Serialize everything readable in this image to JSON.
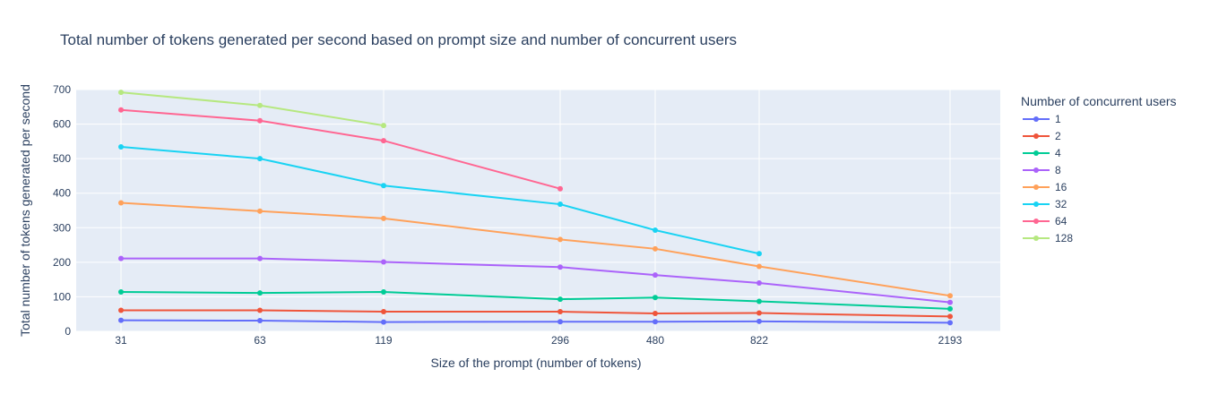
{
  "chart_data": {
    "type": "line",
    "title": "Total number of tokens generated per second based on prompt size and number of concurrent users",
    "xlabel": "Size of the prompt (number of tokens)",
    "ylabel": "Total number of tokens generated per second",
    "categories": [
      "31",
      "63",
      "119",
      "296",
      "480",
      "822",
      "2193"
    ],
    "ylim": [
      0,
      700
    ],
    "yticks": [
      0,
      100,
      200,
      300,
      400,
      500,
      600,
      700
    ],
    "grid": true,
    "legend_title": "Number of concurrent users",
    "legend_position": "right",
    "series": [
      {
        "name": "1",
        "color": "#636efa",
        "values": [
          32,
          31,
          27,
          28,
          28,
          29,
          25
        ]
      },
      {
        "name": "2",
        "color": "#ef553b",
        "values": [
          61,
          61,
          57,
          57,
          52,
          53,
          43
        ]
      },
      {
        "name": "4",
        "color": "#00cc96",
        "values": [
          114,
          111,
          114,
          93,
          98,
          87,
          65
        ]
      },
      {
        "name": "8",
        "color": "#ab63fa",
        "values": [
          211,
          211,
          201,
          186,
          163,
          140,
          84
        ]
      },
      {
        "name": "16",
        "color": "#ffa15a",
        "values": [
          372,
          348,
          327,
          266,
          239,
          188,
          103
        ]
      },
      {
        "name": "32",
        "color": "#19d3f3",
        "values": [
          534,
          500,
          422,
          368,
          293,
          225,
          null
        ]
      },
      {
        "name": "64",
        "color": "#ff6692",
        "values": [
          641,
          610,
          552,
          413,
          null,
          null,
          null
        ]
      },
      {
        "name": "128",
        "color": "#b6e880",
        "values": [
          692,
          654,
          596,
          null,
          null,
          null,
          null
        ]
      }
    ]
  }
}
